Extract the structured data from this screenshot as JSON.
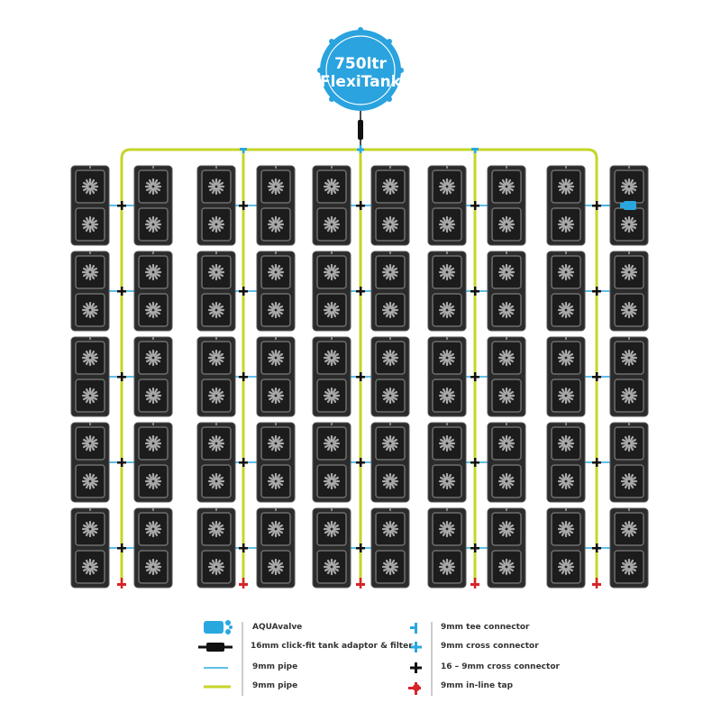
{
  "tank": {
    "line1": "750ltr",
    "line2": "FlexiTank"
  },
  "colors": {
    "tank": "#2aa3df",
    "green_pipe": "#c5d628",
    "blue_pipe": "#29a8e0",
    "tray": "#2b2b2b",
    "tap": "#d8232a",
    "connector": "#111111"
  },
  "legend": {
    "left": [
      {
        "icon": "aquavalve-icon",
        "label": "AQUAvalve"
      },
      {
        "icon": "tank-adaptor-filter-icon",
        "label": "16mm click-fit tank adaptor & filter"
      },
      {
        "icon": "blue-pipe-icon",
        "label": "9mm pipe"
      },
      {
        "icon": "green-pipe-icon",
        "label": "9mm pipe"
      }
    ],
    "right": [
      {
        "icon": "tee-connector-icon",
        "label": "9mm tee connector"
      },
      {
        "icon": "cross-connector-icon",
        "label": "9mm cross connector"
      },
      {
        "icon": "black-cross-connector-icon",
        "label": "16 – 9mm cross connector"
      },
      {
        "icon": "inline-tap-icon",
        "label": "9mm in-line tap"
      }
    ]
  }
}
